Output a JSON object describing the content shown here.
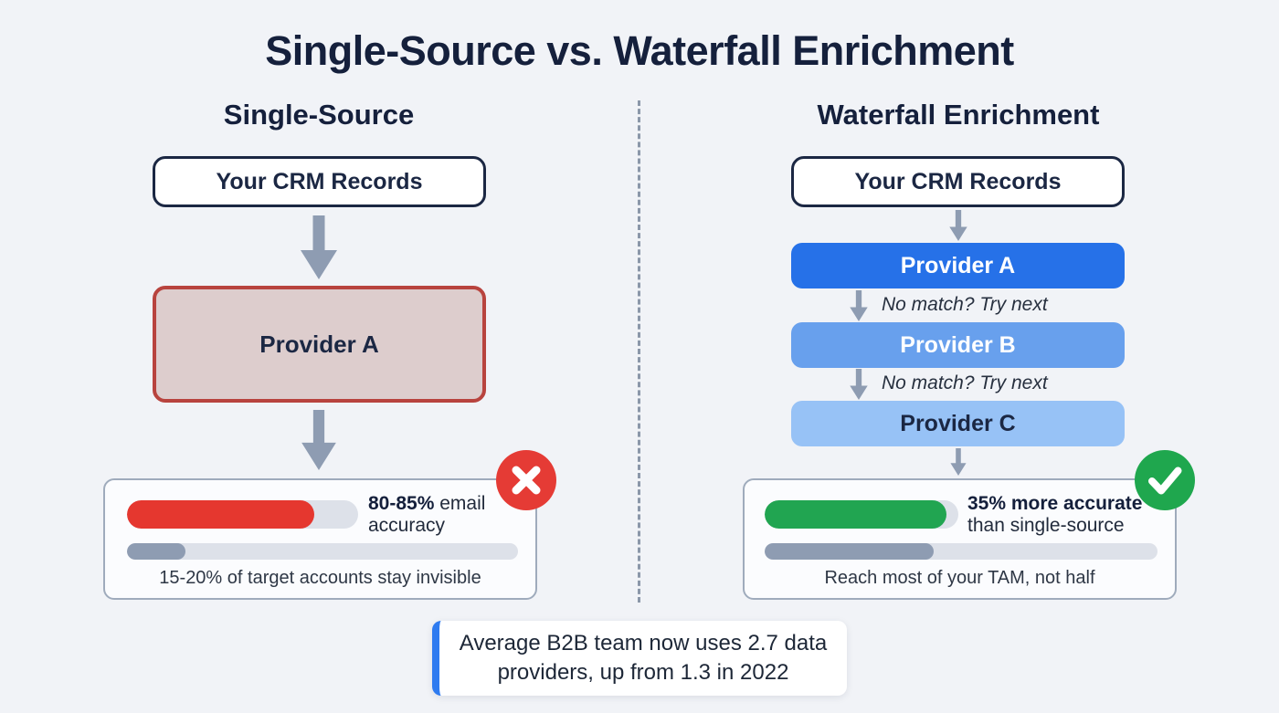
{
  "title": "Single-Source vs. Waterfall Enrichment",
  "colors": {
    "background": "#f1f3f7",
    "heading_navy": "#15203c",
    "arrow_gray": "#8e9cb2",
    "single_provider_bg": "#ddcdcd",
    "single_provider_border": "#b8433e",
    "accuracy_red": "#e5372f",
    "accuracy_green": "#21a551",
    "coverage_gray": "#8e9cb2",
    "bar_track": "#dde1e9",
    "badge_red": "#e53b35",
    "badge_green": "#1fa74e",
    "provider_a_blue": "#2671e8",
    "provider_b_blue": "#68a0ed",
    "provider_c_blue": "#97c2f6",
    "footnote_accent": "#2e7bf0"
  },
  "left": {
    "heading": "Single-Source",
    "crm_box": "Your CRM Records",
    "provider_box": "Provider A",
    "result": {
      "accuracy_value": "80-85%",
      "accuracy_label": " email accuracy",
      "accuracy_bar_pct": 81,
      "coverage_bar_pct": 15,
      "caption": "15-20% of target accounts stay invisible"
    },
    "badge": "cross"
  },
  "right": {
    "heading": "Waterfall Enrichment",
    "crm_box": "Your CRM Records",
    "providers": [
      {
        "label": "Provider A",
        "color": "#2671e8"
      },
      {
        "label": "Provider B",
        "color": "#68a0ed"
      },
      {
        "label": "Provider C",
        "color": "#97c2f6"
      }
    ],
    "fallback_note": "No match? Try next",
    "result": {
      "accuracy_value": "35% more accurate",
      "accuracy_label": "than single-source",
      "accuracy_bar_pct": 94,
      "coverage_bar_pct": 43,
      "caption": "Reach most of your TAM, not half"
    },
    "badge": "check"
  },
  "footnote": {
    "line1": "Average B2B team now uses 2.7 data",
    "line2": "providers, up from 1.3 in 2022"
  }
}
